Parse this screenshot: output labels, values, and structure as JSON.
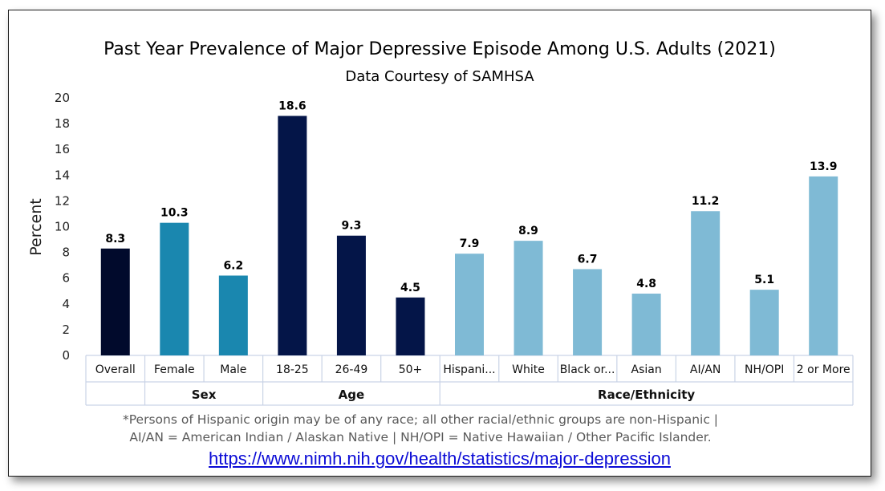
{
  "chart_data": {
    "type": "bar",
    "title": "Past Year Prevalence of Major Depressive Episode Among U.S. Adults (2021)",
    "subtitle": "Data Courtesy of SAMHSA",
    "ylabel": "Percent",
    "xlabel": "",
    "ylim": [
      0,
      20
    ],
    "yticks": [
      0,
      2,
      4,
      6,
      8,
      10,
      12,
      14,
      16,
      18,
      20
    ],
    "grid": false,
    "categories": [
      "Overall",
      "Female",
      "Male",
      "18-25",
      "26-49",
      "50+",
      "Hispani...",
      "White",
      "Black or...",
      "Asian",
      "AI/AN",
      "NH/OPI",
      "2 or More"
    ],
    "values": [
      8.3,
      10.3,
      6.2,
      18.6,
      9.3,
      4.5,
      7.9,
      8.9,
      6.7,
      4.8,
      11.2,
      5.1,
      13.9
    ],
    "data_labels": [
      "8.3",
      "10.3",
      "6.2",
      "18.6",
      "9.3",
      "4.5",
      "7.9",
      "8.9",
      "6.7",
      "4.8",
      "11.2",
      "5.1",
      "13.9"
    ],
    "groups": [
      {
        "name": "",
        "categories": [
          "Overall"
        ],
        "color": "#010a2c"
      },
      {
        "name": "Sex",
        "categories": [
          "Female",
          "Male"
        ],
        "color": "#1a87af"
      },
      {
        "name": "Age",
        "categories": [
          "18-25",
          "26-49",
          "50+"
        ],
        "color": "#041548"
      },
      {
        "name": "Race/Ethnicity",
        "categories": [
          "Hispani...",
          "White",
          "Black or...",
          "Asian",
          "AI/AN",
          "NH/OPI",
          "2 or More"
        ],
        "color": "#7fbad5"
      }
    ],
    "footnote": [
      "*Persons of Hispanic origin may be of any race; all other racial/ethnic groups are non-Hispanic |",
      "AI/AN = American Indian / Alaskan Native | NH/OPI = Native Hawaiian / Other Pacific Islander."
    ]
  },
  "source_link": "https://www.nimh.nih.gov/health/statistics/major-depression",
  "colors": {
    "axis": "#c9d3e6",
    "text": "#000000",
    "footnote": "#5a5a5a",
    "link": "#0b0bd6"
  }
}
